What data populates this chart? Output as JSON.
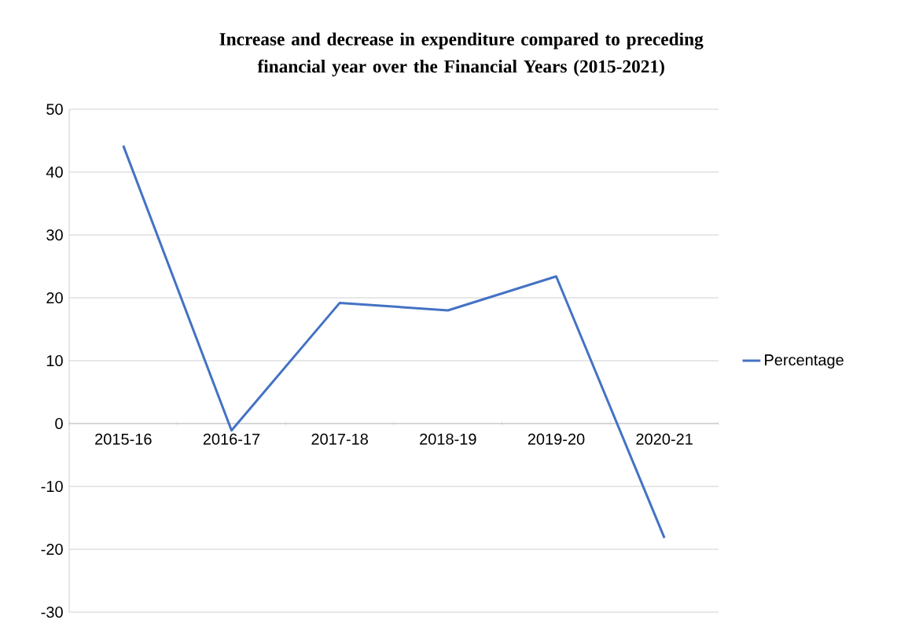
{
  "chart_data": {
    "type": "line",
    "title": "Increase and decrease in expenditure compared to preceding financial year over the Financial Years (2015-2021)",
    "categories": [
      "2015-16",
      "2016-17",
      "2017-18",
      "2018-19",
      "2019-20",
      "2020-21"
    ],
    "series": [
      {
        "name": "Percentage",
        "color": "#4472c4",
        "values": [
          44.2,
          -1.1,
          19.2,
          18.0,
          23.4,
          -18.2
        ]
      }
    ],
    "ylim": [
      -30,
      50
    ],
    "yticks": [
      -30,
      -20,
      -10,
      0,
      10,
      20,
      30,
      40,
      50
    ],
    "grid": "y",
    "legend": "right",
    "marker": "none",
    "line_style": "solid"
  }
}
